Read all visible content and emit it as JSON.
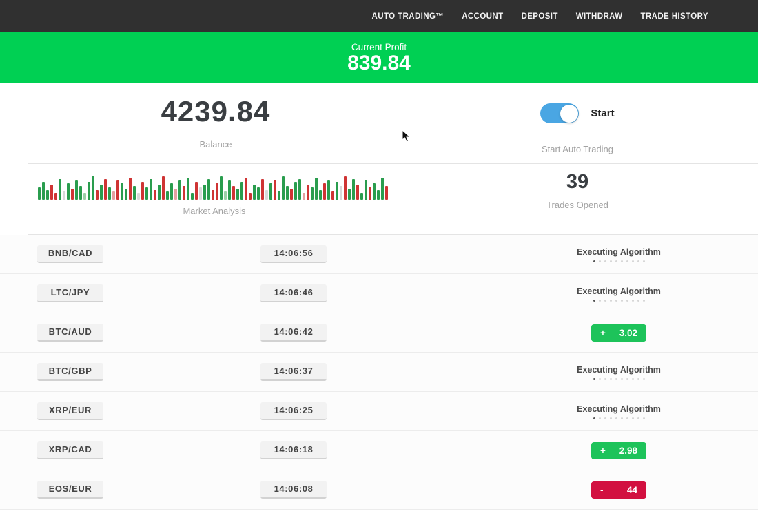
{
  "nav": {
    "items": [
      "AUTO TRADING™",
      "ACCOUNT",
      "DEPOSIT",
      "WITHDRAW",
      "TRADE HISTORY"
    ]
  },
  "profit_banner": {
    "label": "Current Profit",
    "value": "839.84",
    "bg_color": "#00d053"
  },
  "summary": {
    "balance": {
      "value": "4239.84",
      "label": "Balance"
    },
    "auto_trading": {
      "toggle_label": "Start",
      "caption": "Start Auto Trading",
      "toggle_on": true,
      "toggle_color": "#4aa6e3"
    },
    "market_analysis": {
      "label": "Market Analysis"
    },
    "trades_opened": {
      "value": "39",
      "label": "Trades Opened"
    }
  },
  "chart_data": {
    "type": "bar",
    "title": "Market Analysis",
    "xlabel": "",
    "ylabel": "",
    "axes_visible": false,
    "bar_color_map": {
      "g": "#2a9d4e",
      "r": "#cf3434",
      "G": "#9bcfa6",
      "R": "#e4a0a0",
      "x": "#d9d9d9"
    },
    "bars": [
      [
        18,
        "g"
      ],
      [
        26,
        "g"
      ],
      [
        14,
        "g"
      ],
      [
        22,
        "r"
      ],
      [
        10,
        "r"
      ],
      [
        30,
        "g"
      ],
      [
        12,
        "x"
      ],
      [
        24,
        "g"
      ],
      [
        16,
        "r"
      ],
      [
        28,
        "g"
      ],
      [
        20,
        "g"
      ],
      [
        10,
        "G"
      ],
      [
        26,
        "g"
      ],
      [
        34,
        "g"
      ],
      [
        14,
        "r"
      ],
      [
        22,
        "g"
      ],
      [
        30,
        "r"
      ],
      [
        18,
        "g"
      ],
      [
        12,
        "R"
      ],
      [
        28,
        "r"
      ],
      [
        24,
        "g"
      ],
      [
        16,
        "g"
      ],
      [
        32,
        "r"
      ],
      [
        20,
        "g"
      ],
      [
        10,
        "x"
      ],
      [
        26,
        "r"
      ],
      [
        18,
        "g"
      ],
      [
        30,
        "g"
      ],
      [
        14,
        "r"
      ],
      [
        22,
        "g"
      ],
      [
        34,
        "r"
      ],
      [
        12,
        "g"
      ],
      [
        24,
        "g"
      ],
      [
        16,
        "R"
      ],
      [
        28,
        "g"
      ],
      [
        20,
        "r"
      ],
      [
        32,
        "g"
      ],
      [
        10,
        "g"
      ],
      [
        26,
        "r"
      ],
      [
        18,
        "x"
      ],
      [
        22,
        "g"
      ],
      [
        30,
        "g"
      ],
      [
        14,
        "r"
      ],
      [
        24,
        "r"
      ],
      [
        34,
        "g"
      ],
      [
        12,
        "G"
      ],
      [
        28,
        "g"
      ],
      [
        20,
        "r"
      ],
      [
        16,
        "g"
      ],
      [
        26,
        "g"
      ],
      [
        32,
        "r"
      ],
      [
        10,
        "r"
      ],
      [
        22,
        "g"
      ],
      [
        18,
        "g"
      ],
      [
        30,
        "r"
      ],
      [
        14,
        "x"
      ],
      [
        24,
        "g"
      ],
      [
        28,
        "r"
      ],
      [
        12,
        "g"
      ],
      [
        34,
        "g"
      ],
      [
        20,
        "g"
      ],
      [
        16,
        "r"
      ],
      [
        26,
        "g"
      ],
      [
        30,
        "g"
      ],
      [
        10,
        "R"
      ],
      [
        22,
        "r"
      ],
      [
        18,
        "g"
      ],
      [
        32,
        "g"
      ],
      [
        14,
        "g"
      ],
      [
        24,
        "r"
      ],
      [
        28,
        "g"
      ],
      [
        12,
        "r"
      ],
      [
        26,
        "g"
      ],
      [
        20,
        "x"
      ],
      [
        34,
        "r"
      ],
      [
        16,
        "g"
      ],
      [
        30,
        "g"
      ],
      [
        22,
        "r"
      ],
      [
        10,
        "g"
      ],
      [
        28,
        "g"
      ],
      [
        18,
        "r"
      ],
      [
        24,
        "g"
      ],
      [
        14,
        "g"
      ],
      [
        32,
        "g"
      ],
      [
        20,
        "r"
      ]
    ]
  },
  "trades": {
    "executing_label": "Executing Algorithm",
    "dots_total": 10,
    "dots_active": 1,
    "profit_color": "#1dc35a",
    "loss_color": "#d21040",
    "rows": [
      {
        "pair": "BNB/CAD",
        "time": "14:06:56",
        "status": "executing",
        "sign": "",
        "value": ""
      },
      {
        "pair": "LTC/JPY",
        "time": "14:06:46",
        "status": "executing",
        "sign": "",
        "value": ""
      },
      {
        "pair": "BTC/AUD",
        "time": "14:06:42",
        "status": "profit",
        "sign": "+",
        "value": "3.02"
      },
      {
        "pair": "BTC/GBP",
        "time": "14:06:37",
        "status": "executing",
        "sign": "",
        "value": ""
      },
      {
        "pair": "XRP/EUR",
        "time": "14:06:25",
        "status": "executing",
        "sign": "",
        "value": ""
      },
      {
        "pair": "XRP/CAD",
        "time": "14:06:18",
        "status": "profit",
        "sign": "+",
        "value": "2.98"
      },
      {
        "pair": "EOS/EUR",
        "time": "14:06:08",
        "status": "loss",
        "sign": "-",
        "value": "44"
      }
    ]
  }
}
